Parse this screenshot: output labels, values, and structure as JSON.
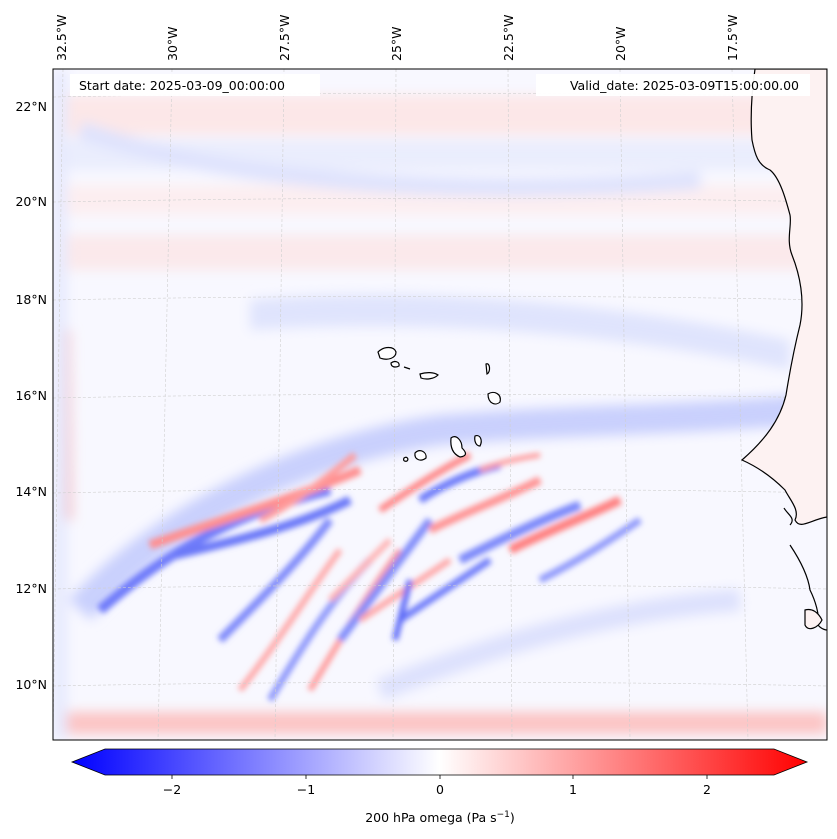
{
  "map": {
    "start_date_label": "Start date: 2025-03-09_00:00:00",
    "valid_date_label": "Valid_date: 2025-03-09T15:00:00.00",
    "lon_labels": [
      "32.5°W",
      "30°W",
      "27.5°W",
      "25°W",
      "22.5°W",
      "20°W",
      "17.5°W"
    ],
    "lat_labels": [
      "22°N",
      "20°N",
      "18°N",
      "16°N",
      "14°N",
      "12°N",
      "10°N"
    ],
    "field": "200 hPa omega",
    "colormap": "bwr",
    "colors": {
      "negative": "#0000ff",
      "zero": "#ffffff",
      "positive": "#ff0000",
      "coast": "#000000",
      "grid": "#c8c8c8"
    }
  },
  "colorbar": {
    "ticks": [
      "−2",
      "−1",
      "0",
      "1",
      "2"
    ],
    "vmin": -2.5,
    "vmax": 2.5,
    "label_text": "200 hPa omega (Pa s",
    "label_sup": "−1",
    "label_close": ")"
  }
}
